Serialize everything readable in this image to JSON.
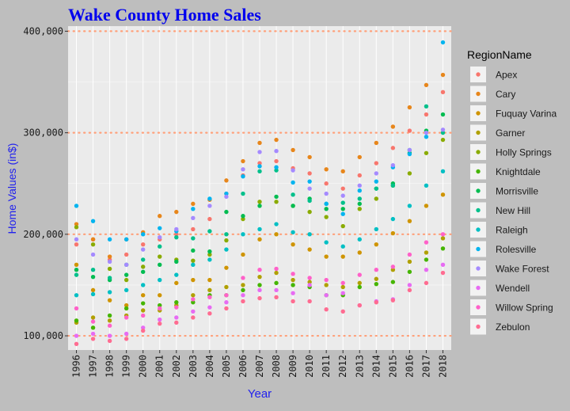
{
  "chart_data": {
    "type": "scatter",
    "title": "Wake County Home Sales",
    "xlabel": "Year",
    "ylabel": "Home Values (in$)",
    "legend_title": "RegionName",
    "legend_position": "right",
    "grid": true,
    "xlim": [
      1995.5,
      2018.5
    ],
    "ylim": [
      86000,
      405000
    ],
    "x": [
      1996,
      1997,
      1998,
      1999,
      2000,
      2001,
      2002,
      2003,
      2004,
      2005,
      2006,
      2007,
      2008,
      2009,
      2010,
      2011,
      2012,
      2013,
      2014,
      2015,
      2016,
      2017,
      2018
    ],
    "x_tick_labels": [
      "1996",
      "1997",
      "1998",
      "1999",
      "2000",
      "2001",
      "2002",
      "2003",
      "2004",
      "2005",
      "2006",
      "2007",
      "2008",
      "2009",
      "2010",
      "2011",
      "2012",
      "2013",
      "2014",
      "2015",
      "2016",
      "2017",
      "2018"
    ],
    "y_ticks": [
      100000,
      200000,
      300000,
      400000
    ],
    "y_tick_labels": [
      "100,000",
      "200,000",
      "300,000",
      "400,000"
    ],
    "series": [
      {
        "name": "Apex",
        "color": "#F8766D",
        "values": [
          190000,
          195000,
          175000,
          180000,
          190000,
          195000,
          200000,
          205000,
          215000,
          240000,
          258000,
          270000,
          272000,
          265000,
          260000,
          250000,
          245000,
          258000,
          270000,
          285000,
          302000,
          318000,
          340000
        ]
      },
      {
        "name": "Cary",
        "color": "#E7861B",
        "values": [
          210000,
          195000,
          178000,
          195000,
          202000,
          218000,
          222000,
          230000,
          234000,
          253000,
          272000,
          290000,
          293000,
          283000,
          276000,
          264000,
          262000,
          276000,
          290000,
          306000,
          325000,
          347000,
          357000
        ]
      },
      {
        "name": "Fuquay Varina",
        "color": "#CF9400",
        "values": [
          170000,
          145000,
          135000,
          130000,
          140000,
          140000,
          152000,
          155000,
          155000,
          167000,
          180000,
          195000,
          200000,
          190000,
          185000,
          178000,
          178000,
          182000,
          190000,
          201000,
          213000,
          228000,
          239000
        ]
      },
      {
        "name": "Garner",
        "color": "#B0A000",
        "values": [
          113000,
          118000,
          115000,
          120000,
          125000,
          125000,
          130000,
          140000,
          145000,
          148000,
          150000,
          158000,
          162000,
          155000,
          153000,
          150000,
          148000,
          152000,
          156000,
          165000,
          173000,
          182000,
          196000
        ]
      },
      {
        "name": "Holly Springs",
        "color": "#8AAB00",
        "values": [
          207000,
          190000,
          166000,
          155000,
          168000,
          178000,
          175000,
          174000,
          180000,
          194000,
          215000,
          232000,
          232000,
          228000,
          222000,
          217000,
          208000,
          225000,
          235000,
          248000,
          260000,
          280000,
          293000
        ]
      },
      {
        "name": "Knightdale",
        "color": "#45B500",
        "values": [
          115000,
          108000,
          120000,
          127000,
          132000,
          130000,
          133000,
          133000,
          140000,
          140000,
          145000,
          150000,
          152000,
          150000,
          148000,
          140000,
          140000,
          148000,
          151000,
          153000,
          163000,
          175000,
          186000
        ]
      },
      {
        "name": "Morrisville",
        "color": "#00BC51",
        "values": [
          165000,
          158000,
          155000,
          160000,
          163000,
          170000,
          173000,
          184000,
          183000,
          222000,
          218000,
          228000,
          237000,
          228000,
          235000,
          225000,
          225000,
          230000,
          245000,
          250000,
          280000,
          302000,
          318000
        ]
      },
      {
        "name": "New Hill",
        "color": "#00C08B",
        "values": [
          160000,
          165000,
          157000,
          170000,
          175000,
          188000,
          197000,
          196000,
          203000,
          200000,
          240000,
          262000,
          263000,
          239000,
          233000,
          230000,
          231000,
          235000,
          245000,
          248000,
          283000,
          326000,
          300000
        ]
      },
      {
        "name": "Raleigh",
        "color": "#00BFC4",
        "values": [
          140000,
          141000,
          143000,
          145000,
          150000,
          155000,
          160000,
          170000,
          175000,
          185000,
          200000,
          205000,
          210000,
          202000,
          200000,
          192000,
          188000,
          195000,
          205000,
          215000,
          228000,
          248000,
          262000
        ]
      },
      {
        "name": "Rolesville",
        "color": "#00B4EF",
        "values": [
          228000,
          213000,
          195000,
          195000,
          200000,
          206000,
          203000,
          225000,
          235000,
          240000,
          257000,
          267000,
          266000,
          251000,
          252000,
          230000,
          220000,
          243000,
          252000,
          266000,
          279000,
          296000,
          389000
        ]
      },
      {
        "name": "Wake Forest",
        "color": "#A58AFF",
        "values": [
          195000,
          180000,
          173000,
          170000,
          185000,
          197000,
          205000,
          216000,
          228000,
          237000,
          264000,
          281000,
          282000,
          263000,
          245000,
          240000,
          238000,
          248000,
          260000,
          268000,
          283000,
          300000,
          303000
        ]
      },
      {
        "name": "Wendell",
        "color": "#E76BF3",
        "values": [
          100000,
          102000,
          100000,
          102000,
          108000,
          116000,
          118000,
          124000,
          128000,
          133000,
          140000,
          145000,
          145000,
          142000,
          150000,
          140000,
          142000,
          130000,
          134000,
          136000,
          150000,
          165000,
          170000
        ]
      },
      {
        "name": "Willow Spring",
        "color": "#FF61C9",
        "values": [
          127000,
          114000,
          110000,
          118000,
          120000,
          127000,
          128000,
          136000,
          138000,
          140000,
          157000,
          165000,
          166000,
          161000,
          157000,
          155000,
          152000,
          160000,
          165000,
          168000,
          180000,
          192000,
          200000
        ]
      },
      {
        "name": "Zebulon",
        "color": "#FF6C91",
        "values": [
          92000,
          97000,
          95000,
          97000,
          105000,
          112000,
          113000,
          118000,
          122000,
          127000,
          134000,
          137000,
          138000,
          134000,
          134000,
          126000,
          124000,
          130000,
          133000,
          135000,
          145000,
          152000,
          162000
        ]
      }
    ]
  }
}
